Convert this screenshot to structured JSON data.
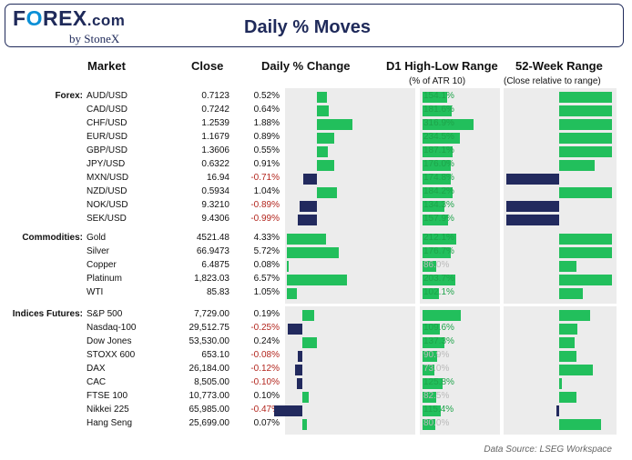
{
  "header": {
    "logo_text": "FOREX.com",
    "logo_sub": "by StoneX",
    "title": "Daily % Moves"
  },
  "columns": {
    "market": "Market",
    "close": "Close",
    "daily": "Daily % Change",
    "range": "D1 High-Low Range",
    "range_sub": "(% of ATR 10)",
    "week52": "52-Week Range",
    "week52_sub": "(Close relative to range)"
  },
  "footer": "Data Source: LSEG Workspace",
  "colors": {
    "positive": "#22bf5c",
    "negative": "#222a5e",
    "panel": "#ececec",
    "range_text": "#1ea44a",
    "negative_text": "#b3261e"
  },
  "chart_data": {
    "type": "table",
    "daily_axis_range": [
      -1.0,
      7.0
    ],
    "groups": [
      {
        "name": "Forex:",
        "rows": [
          {
            "market": "AUD/USD",
            "close": "0.7123",
            "change": "0.52%",
            "change_value": 0.52,
            "range": "154.1%",
            "range_value": 154.1,
            "range_highlight": true,
            "week52": 1.0
          },
          {
            "market": "CAD/USD",
            "close": "0.7242",
            "change": "0.64%",
            "change_value": 0.64,
            "range": "181.6%",
            "range_value": 181.6,
            "range_highlight": true,
            "week52": 1.0
          },
          {
            "market": "CHF/USD",
            "close": "1.2539",
            "change": "1.88%",
            "change_value": 1.88,
            "range": "316.9%",
            "range_value": 316.9,
            "range_highlight": true,
            "week52": 1.0
          },
          {
            "market": "EUR/USD",
            "close": "1.1679",
            "change": "0.89%",
            "change_value": 0.89,
            "range": "234.5%",
            "range_value": 234.5,
            "range_highlight": true,
            "week52": 1.0
          },
          {
            "market": "GBP/USD",
            "close": "1.3606",
            "change": "0.55%",
            "change_value": 0.55,
            "range": "187.1%",
            "range_value": 187.1,
            "range_highlight": true,
            "week52": 1.0
          },
          {
            "market": "JPY/USD",
            "close": "0.6322",
            "change": "0.91%",
            "change_value": 0.91,
            "range": "176.0%",
            "range_value": 176.0,
            "range_highlight": true,
            "week52": 0.68
          },
          {
            "market": "MXN/USD",
            "close": "16.94",
            "change": "-0.71%",
            "change_value": -0.71,
            "range": "174.8%",
            "range_value": 174.8,
            "range_highlight": true,
            "week52": -1.0
          },
          {
            "market": "NZD/USD",
            "close": "0.5934",
            "change": "1.04%",
            "change_value": 1.04,
            "range": "184.2%",
            "range_value": 184.2,
            "range_highlight": true,
            "week52": 1.0
          },
          {
            "market": "NOK/USD",
            "close": "9.3210",
            "change": "-0.89%",
            "change_value": -0.89,
            "range": "134.3%",
            "range_value": 134.3,
            "range_highlight": true,
            "week52": -1.0
          },
          {
            "market": "SEK/USD",
            "close": "9.4306",
            "change": "-0.99%",
            "change_value": -0.99,
            "range": "157.9%",
            "range_value": 157.9,
            "range_highlight": true,
            "week52": -1.0
          }
        ]
      },
      {
        "name": "Commodities:",
        "rows": [
          {
            "market": "Gold",
            "close": "4521.48",
            "change": "4.33%",
            "change_value": 4.33,
            "range": "212.1%",
            "range_value": 212.1,
            "range_highlight": true,
            "week52": 1.0
          },
          {
            "market": "Silver",
            "close": "66.9473",
            "change": "5.72%",
            "change_value": 5.72,
            "range": "176.7%",
            "range_value": 176.7,
            "range_highlight": true,
            "week52": 1.0
          },
          {
            "market": "Copper",
            "close": "6.4875",
            "change": "0.08%",
            "change_value": 0.08,
            "range": "86.0%",
            "range_value": 86.0,
            "range_highlight": false,
            "week52": 0.33
          },
          {
            "market": "Platinum",
            "close": "1,823.03",
            "change": "6.57%",
            "change_value": 6.57,
            "range": "203.7%",
            "range_value": 203.7,
            "range_highlight": true,
            "week52": 1.0
          },
          {
            "market": "WTI",
            "close": "85.83",
            "change": "1.05%",
            "change_value": 1.05,
            "range": "102.1%",
            "range_value": 102.1,
            "range_highlight": true,
            "week52": 0.45
          }
        ]
      },
      {
        "name": "Indices Futures:",
        "rows": [
          {
            "market": "S&P 500",
            "close": "7,729.00",
            "change": "0.19%",
            "change_value": 0.19,
            "range": "",
            "range_value": 235.0,
            "range_highlight": true,
            "week52": 0.59
          },
          {
            "market": "Nasdaq-100",
            "close": "29,512.75",
            "change": "-0.25%",
            "change_value": -0.25,
            "range": "109.6%",
            "range_value": 109.6,
            "range_highlight": true,
            "week52": 0.35
          },
          {
            "market": "Dow Jones",
            "close": "53,530.00",
            "change": "0.24%",
            "change_value": 0.24,
            "range": "137.3%",
            "range_value": 137.3,
            "range_highlight": true,
            "week52": 0.29
          },
          {
            "market": "STOXX 600",
            "close": "653.10",
            "change": "-0.08%",
            "change_value": -0.08,
            "range": "90.9%",
            "range_value": 90.9,
            "range_highlight": false,
            "week52": 0.33
          },
          {
            "market": "DAX",
            "close": "26,184.00",
            "change": "-0.12%",
            "change_value": -0.12,
            "range": "73.0%",
            "range_value": 73.0,
            "range_highlight": false,
            "week52": 0.64
          },
          {
            "market": "CAC",
            "close": "8,505.00",
            "change": "-0.10%",
            "change_value": -0.1,
            "range": "125.8%",
            "range_value": 125.8,
            "range_highlight": true,
            "week52": 0.06
          },
          {
            "market": "FTSE 100",
            "close": "10,773.00",
            "change": "0.10%",
            "change_value": 0.1,
            "range": "82.5%",
            "range_value": 82.5,
            "range_highlight": false,
            "week52": 0.33
          },
          {
            "market": "Nikkei 225",
            "close": "65,985.00",
            "change": "-0.47%",
            "change_value": -0.47,
            "range": "115.4%",
            "range_value": 115.4,
            "range_highlight": true,
            "week52": -0.06
          },
          {
            "market": "Hang Seng",
            "close": "25,699.00",
            "change": "0.07%",
            "change_value": 0.07,
            "range": "80.0%",
            "range_value": 80.0,
            "range_highlight": false,
            "week52": 0.8
          }
        ]
      }
    ]
  }
}
